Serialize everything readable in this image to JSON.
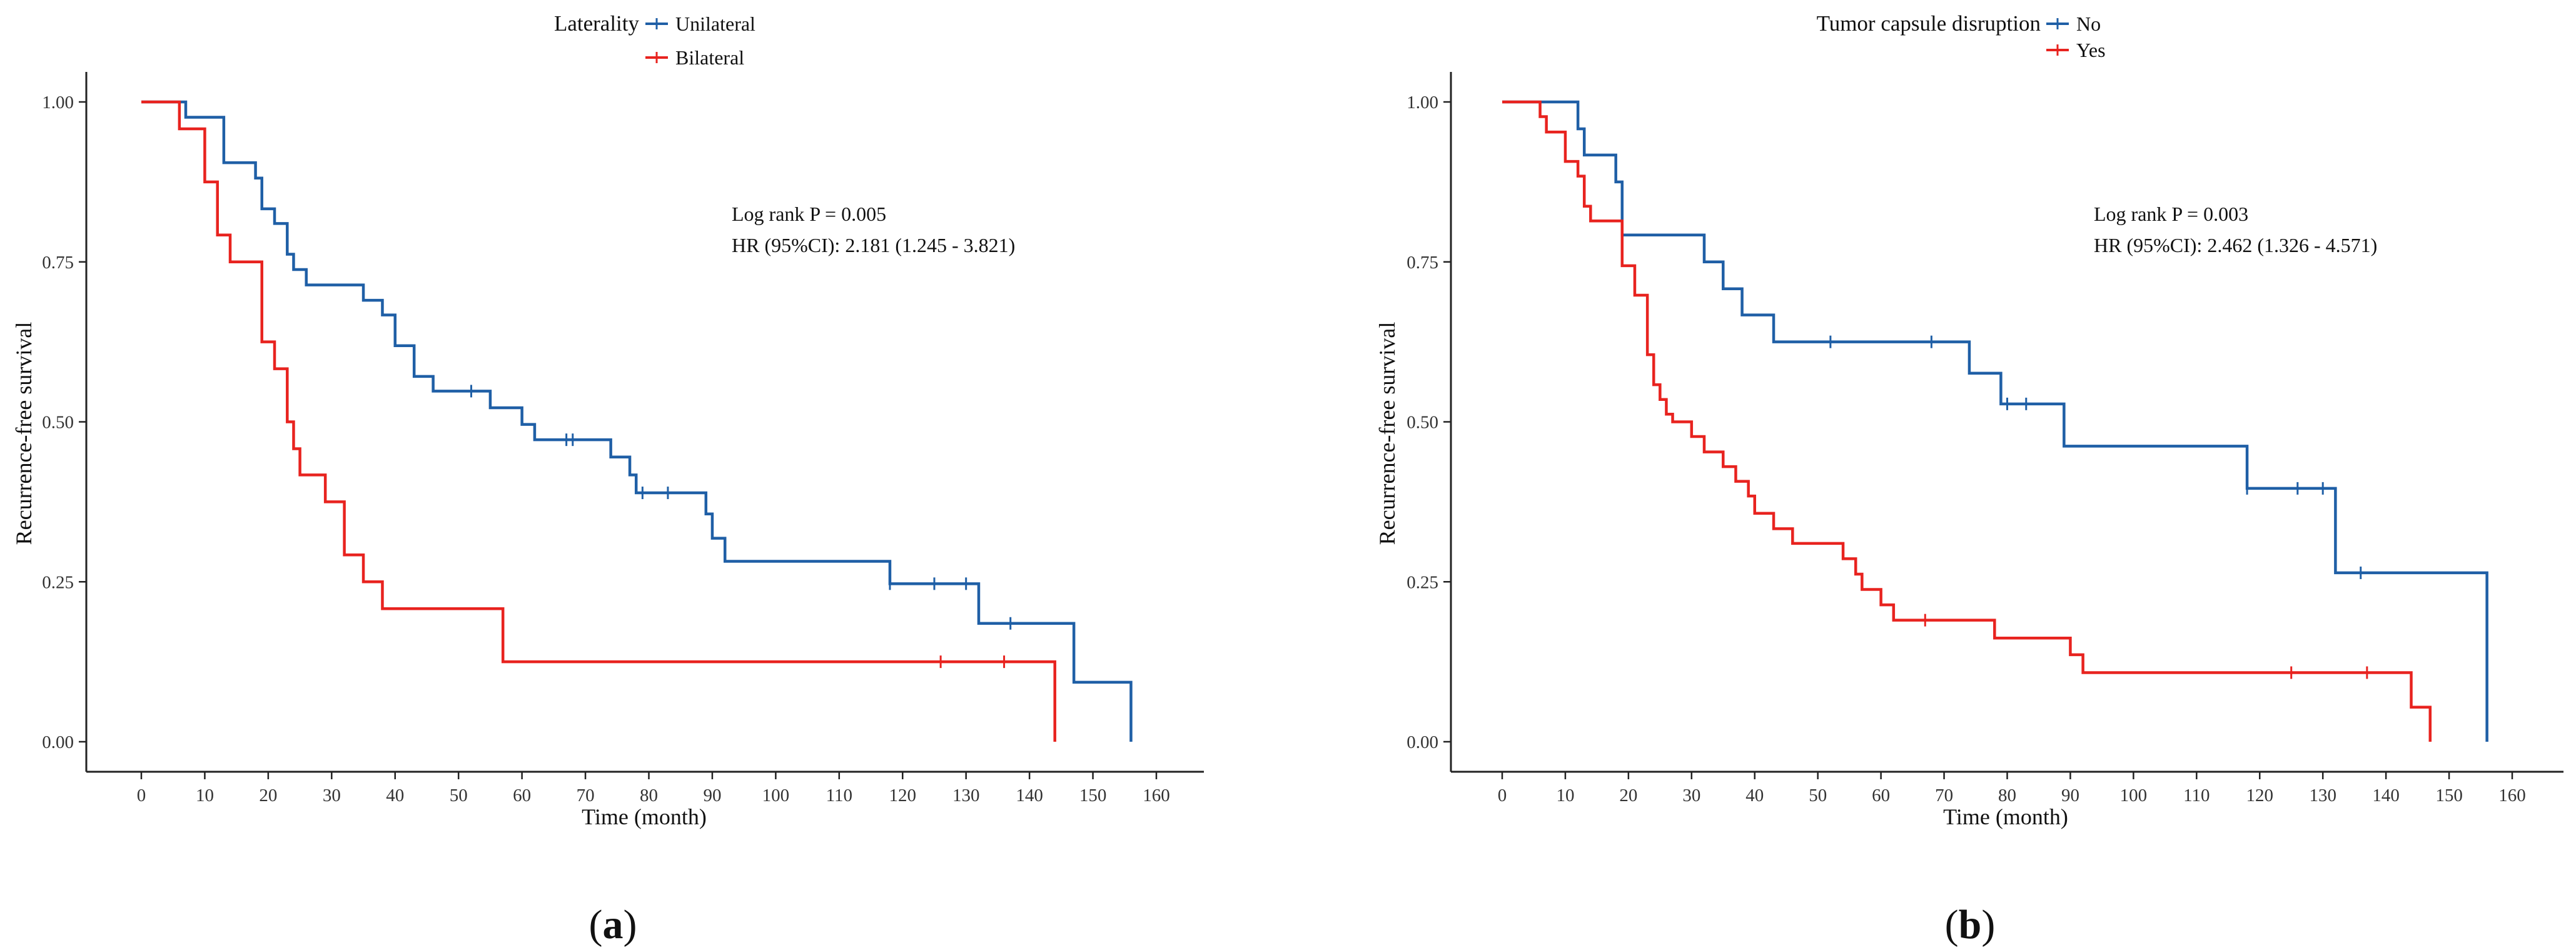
{
  "chart_data": [
    {
      "type": "line",
      "subtype": "kaplan-meier",
      "panel_label": "a",
      "legend_title": "Laterality",
      "legend_position": "top-center",
      "xlabel": "Time (month)",
      "ylabel": "Recurrence-free survival",
      "xlim": [
        0,
        160
      ],
      "ylim": [
        0,
        1
      ],
      "xticks": [
        "0",
        "10",
        "20",
        "30",
        "40",
        "50",
        "60",
        "70",
        "80",
        "90",
        "100",
        "110",
        "120",
        "130",
        "140",
        "150",
        "160"
      ],
      "yticks": [
        "0.00",
        "0.25",
        "0.50",
        "0.75",
        "1.00"
      ],
      "annotations": [
        "Log rank P = 0.005",
        "HR (95%CI): 2.181 (1.245 - 3.821)"
      ],
      "series": [
        {
          "name": "Unilateral",
          "color": "#1f5fa6",
          "steps": [
            [
              0,
              1.0
            ],
            [
              7,
              0.976
            ],
            [
              13,
              0.905
            ],
            [
              18,
              0.881
            ],
            [
              19,
              0.833
            ],
            [
              21,
              0.81
            ],
            [
              23,
              0.762
            ],
            [
              24,
              0.738
            ],
            [
              26,
              0.714
            ],
            [
              35,
              0.69
            ],
            [
              38,
              0.667
            ],
            [
              40,
              0.619
            ],
            [
              43,
              0.571
            ],
            [
              46,
              0.548
            ],
            [
              55,
              0.522
            ],
            [
              60,
              0.496
            ],
            [
              62,
              0.472
            ],
            [
              74,
              0.445
            ],
            [
              77,
              0.417
            ],
            [
              78,
              0.389
            ],
            [
              89,
              0.356
            ],
            [
              90,
              0.318
            ],
            [
              92,
              0.282
            ],
            [
              118,
              0.247
            ],
            [
              132,
              0.185
            ],
            [
              147,
              0.093
            ],
            [
              156,
              0.0
            ]
          ],
          "censored": [
            [
              52,
              0.548
            ],
            [
              67,
              0.472
            ],
            [
              68,
              0.472
            ],
            [
              79,
              0.389
            ],
            [
              83,
              0.389
            ],
            [
              118,
              0.247
            ],
            [
              125,
              0.247
            ],
            [
              130,
              0.247
            ],
            [
              137,
              0.185
            ]
          ]
        },
        {
          "name": "Bilateral",
          "color": "#e8231f",
          "steps": [
            [
              0,
              1.0
            ],
            [
              6,
              0.958
            ],
            [
              10,
              0.875
            ],
            [
              12,
              0.792
            ],
            [
              14,
              0.75
            ],
            [
              19,
              0.625
            ],
            [
              21,
              0.583
            ],
            [
              23,
              0.5
            ],
            [
              24,
              0.458
            ],
            [
              25,
              0.417
            ],
            [
              29,
              0.375
            ],
            [
              32,
              0.292
            ],
            [
              35,
              0.25
            ],
            [
              38,
              0.208
            ],
            [
              57,
              0.125
            ],
            [
              144,
              0.0
            ]
          ],
          "censored": [
            [
              126,
              0.125
            ],
            [
              136,
              0.125
            ]
          ]
        }
      ]
    },
    {
      "type": "line",
      "subtype": "kaplan-meier",
      "panel_label": "b",
      "legend_title": "Tumor capsule disruption",
      "legend_position": "top-center",
      "xlabel": "Time (month)",
      "ylabel": "Recurrence-free survival",
      "xlim": [
        0,
        160
      ],
      "ylim": [
        0,
        1
      ],
      "xticks": [
        "0",
        "10",
        "20",
        "30",
        "40",
        "50",
        "60",
        "70",
        "80",
        "90",
        "100",
        "110",
        "120",
        "130",
        "140",
        "150",
        "160"
      ],
      "yticks": [
        "0.00",
        "0.25",
        "0.50",
        "0.75",
        "1.00"
      ],
      "annotations": [
        "Log rank P = 0.003",
        "HR (95%CI): 2.462 (1.326 - 4.571)"
      ],
      "series": [
        {
          "name": "No",
          "color": "#1f5fa6",
          "steps": [
            [
              0,
              1.0
            ],
            [
              12,
              0.958
            ],
            [
              13,
              0.917
            ],
            [
              18,
              0.875
            ],
            [
              19,
              0.792
            ],
            [
              32,
              0.75
            ],
            [
              35,
              0.708
            ],
            [
              38,
              0.667
            ],
            [
              43,
              0.625
            ],
            [
              74,
              0.576
            ],
            [
              79,
              0.528
            ],
            [
              89,
              0.462
            ],
            [
              118,
              0.396
            ],
            [
              132,
              0.264
            ],
            [
              156,
              0.0
            ]
          ],
          "censored": [
            [
              52,
              0.625
            ],
            [
              68,
              0.625
            ],
            [
              80,
              0.528
            ],
            [
              83,
              0.528
            ],
            [
              118,
              0.396
            ],
            [
              126,
              0.396
            ],
            [
              130,
              0.396
            ],
            [
              136,
              0.264
            ]
          ]
        },
        {
          "name": "Yes",
          "color": "#e8231f",
          "steps": [
            [
              0,
              1.0
            ],
            [
              6,
              0.977
            ],
            [
              7,
              0.953
            ],
            [
              10,
              0.907
            ],
            [
              12,
              0.884
            ],
            [
              13,
              0.837
            ],
            [
              14,
              0.814
            ],
            [
              19,
              0.744
            ],
            [
              21,
              0.698
            ],
            [
              23,
              0.605
            ],
            [
              24,
              0.558
            ],
            [
              25,
              0.535
            ],
            [
              26,
              0.512
            ],
            [
              27,
              0.5
            ],
            [
              30,
              0.477
            ],
            [
              32,
              0.453
            ],
            [
              35,
              0.43
            ],
            [
              37,
              0.407
            ],
            [
              39,
              0.384
            ],
            [
              40,
              0.357
            ],
            [
              43,
              0.333
            ],
            [
              46,
              0.31
            ],
            [
              54,
              0.286
            ],
            [
              56,
              0.262
            ],
            [
              57,
              0.238
            ],
            [
              60,
              0.214
            ],
            [
              62,
              0.19
            ],
            [
              78,
              0.162
            ],
            [
              90,
              0.136
            ],
            [
              92,
              0.108
            ],
            [
              144,
              0.054
            ],
            [
              147,
              0.0
            ]
          ],
          "censored": [
            [
              67,
              0.19
            ],
            [
              125,
              0.108
            ],
            [
              137,
              0.108
            ]
          ]
        }
      ]
    }
  ]
}
